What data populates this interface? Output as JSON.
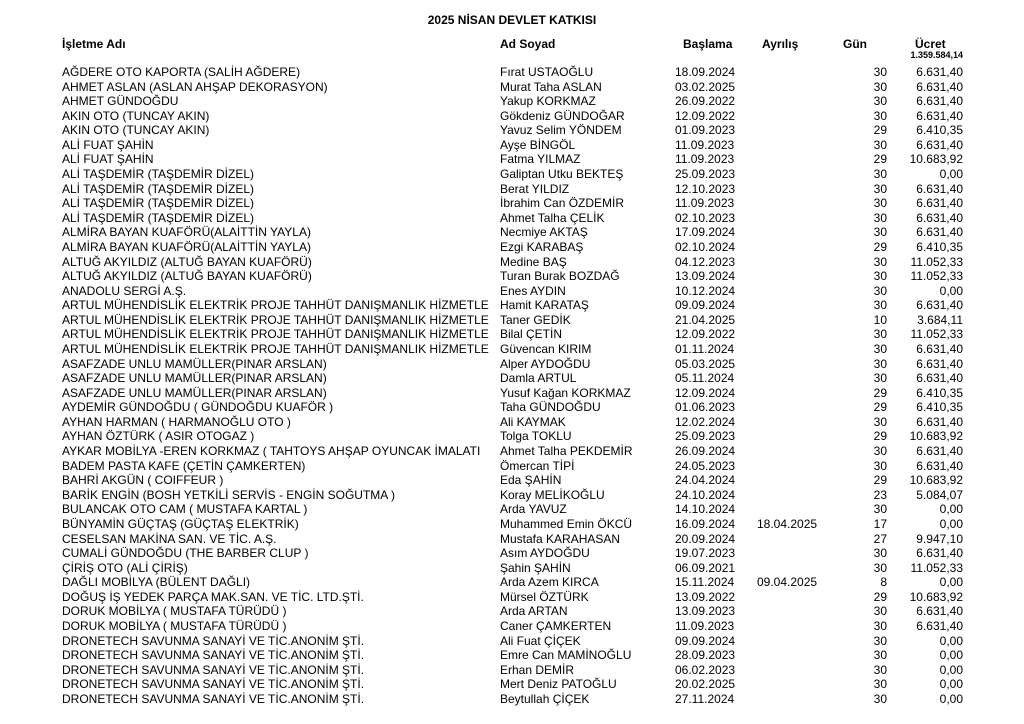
{
  "title": "2025 NİSAN DEVLET KATKISI",
  "headers": {
    "business": "İşletme Adı",
    "name": "Ad Soyad",
    "start": "Başlama",
    "end": "Ayrılış",
    "days": "Gün",
    "wage": "Ücret"
  },
  "total_wage": "1.359.584,14",
  "rows": [
    [
      "AĞDERE OTO KAPORTA (SALİH AĞDERE)",
      "Fırat USTAOĞLU",
      "18.09.2024",
      "",
      "30",
      "6.631,40"
    ],
    [
      "AHMET ASLAN (ASLAN AHŞAP DEKORASYON)",
      "Murat Taha ASLAN",
      "03.02.2025",
      "",
      "30",
      "6.631,40"
    ],
    [
      "AHMET GÜNDOĞDU",
      "Yakup KORKMAZ",
      "26.09.2022",
      "",
      "30",
      "6.631,40"
    ],
    [
      "AKIN OTO (TUNCAY AKIN)",
      "Gökdeniz GÜNDOĞAR",
      "12.09.2022",
      "",
      "30",
      "6.631,40"
    ],
    [
      "AKIN OTO (TUNCAY AKIN)",
      "Yavuz Selim YÖNDEM",
      "01.09.2023",
      "",
      "29",
      "6.410,35"
    ],
    [
      "ALİ FUAT ŞAHİN",
      "Ayşe BİNGÖL",
      "11.09.2023",
      "",
      "30",
      "6.631,40"
    ],
    [
      "ALİ FUAT ŞAHİN",
      "Fatma YILMAZ",
      "11.09.2023",
      "",
      "29",
      "10.683,92"
    ],
    [
      "ALİ TAŞDEMİR (TAŞDEMİR DİZEL)",
      "Galiptan Utku BEKTEŞ",
      "25.09.2023",
      "",
      "30",
      "0,00"
    ],
    [
      "ALİ TAŞDEMİR (TAŞDEMİR DİZEL)",
      "Berat YILDIZ",
      "12.10.2023",
      "",
      "30",
      "6.631,40"
    ],
    [
      "ALİ TAŞDEMİR (TAŞDEMİR DİZEL)",
      "İbrahim Can ÖZDEMİR",
      "11.09.2023",
      "",
      "30",
      "6.631,40"
    ],
    [
      "ALİ TAŞDEMİR (TAŞDEMİR DİZEL)",
      "Ahmet Talha ÇELİK",
      "02.10.2023",
      "",
      "30",
      "6.631,40"
    ],
    [
      "ALMİRA BAYAN KUAFÖRÜ(ALAİTTİN YAYLA)",
      "Necmiye AKTAŞ",
      "17.09.2024",
      "",
      "30",
      "6.631,40"
    ],
    [
      "ALMİRA BAYAN KUAFÖRÜ(ALAİTTİN YAYLA)",
      "Ezgi KARABAŞ",
      "02.10.2024",
      "",
      "29",
      "6.410,35"
    ],
    [
      "ALTUĞ AKYILDIZ (ALTUĞ BAYAN KUAFÖRÜ)",
      "Medine BAŞ",
      "04.12.2023",
      "",
      "30",
      "11.052,33"
    ],
    [
      "ALTUĞ AKYILDIZ (ALTUĞ BAYAN KUAFÖRÜ)",
      "Turan Burak BOZDAĞ",
      "13.09.2024",
      "",
      "30",
      "11.052,33"
    ],
    [
      "ANADOLU SERGİ A.Ş.",
      "Enes AYDIN",
      "10.12.2024",
      "",
      "30",
      "0,00"
    ],
    [
      "ARTUL MÜHENDİSLİK  ELEKTRİK PROJE TAHHÜT DANIŞMANLIK HİZMETLE",
      "Hamit KARATAŞ",
      "09.09.2024",
      "",
      "30",
      "6.631,40"
    ],
    [
      "ARTUL MÜHENDİSLİK  ELEKTRİK PROJE TAHHÜT DANIŞMANLIK HİZMETLE",
      "Taner GEDİK",
      "21.04.2025",
      "",
      "10",
      "3.684,11"
    ],
    [
      "ARTUL MÜHENDİSLİK  ELEKTRİK PROJE TAHHÜT DANIŞMANLIK HİZMETLE",
      "Bilal ÇETİN",
      "12.09.2022",
      "",
      "30",
      "11.052,33"
    ],
    [
      "ARTUL MÜHENDİSLİK  ELEKTRİK PROJE TAHHÜT DANIŞMANLIK HİZMETLE",
      "Güvencan KIRIM",
      "01.11.2024",
      "",
      "30",
      "6.631,40"
    ],
    [
      "ASAFZADE UNLU MAMÜLLER(PINAR ARSLAN)",
      "Alper AYDOĞDU",
      "05.03.2025",
      "",
      "30",
      "6.631,40"
    ],
    [
      "ASAFZADE UNLU MAMÜLLER(PINAR ARSLAN)",
      "Damla ARTUL",
      "05.11.2024",
      "",
      "30",
      "6.631,40"
    ],
    [
      "ASAFZADE UNLU MAMÜLLER(PINAR ARSLAN)",
      "Yusuf Kağan KORKMAZ",
      "12.09.2024",
      "",
      "29",
      "6.410,35"
    ],
    [
      "AYDEMİR GÜNDOĞDU  ( GÜNDOĞDU KUAFÖR )",
      "Taha GÜNDOĞDU",
      "01.06.2023",
      "",
      "29",
      "6.410,35"
    ],
    [
      "AYHAN HARMAN ( HARMANOĞLU OTO )",
      "Ali KAYMAK",
      "12.02.2024",
      "",
      "30",
      "6.631,40"
    ],
    [
      "AYHAN ÖZTÜRK ( ASIR OTOGAZ )",
      "Tolga TOKLU",
      "25.09.2023",
      "",
      "29",
      "10.683,92"
    ],
    [
      "AYKAR MOBİLYA -EREN KORKMAZ   ( TAHTOYS AHŞAP OYUNCAK İMALATI",
      "Ahmet Talha PEKDEMİR",
      "26.09.2024",
      "",
      "30",
      "6.631,40"
    ],
    [
      "BADEM PASTA KAFE (ÇETİN ÇAMKERTEN)",
      "Ömercan TİPİ",
      "24.05.2023",
      "",
      "30",
      "6.631,40"
    ],
    [
      "BAHRİ AKGÜN ( COIFFEUR )",
      "Eda ŞAHİN",
      "24.04.2024",
      "",
      "29",
      "10.683,92"
    ],
    [
      "BARİK ENGİN   (BOSH YETKİLİ SERVİS   - ENGİN SOĞUTMA )",
      "Koray MELİKOĞLU",
      "24.10.2024",
      "",
      "23",
      "5.084,07"
    ],
    [
      "BULANCAK OTO CAM ( MUSTAFA KARTAL )",
      "Arda YAVUZ",
      "14.10.2024",
      "",
      "30",
      "0,00"
    ],
    [
      "BÜNYAMİN GÜÇTAŞ     (GÜÇTAŞ ELEKTRİK)",
      "Muhammed Emin ÖKCÜ",
      "16.09.2024",
      "18.04.2025",
      "17",
      "0,00"
    ],
    [
      "CESELSAN MAKİNA SAN. VE TİC. A.Ş.",
      "Mustafa KARAHASAN",
      "20.09.2024",
      "",
      "27",
      "9.947,10"
    ],
    [
      "CUMALİ GÜNDOĞDU (THE  BARBER  CLUP )",
      "Asım AYDOĞDU",
      "19.07.2023",
      "",
      "30",
      "6.631,40"
    ],
    [
      "ÇİRİŞ OTO (ALİ ÇİRİŞ)",
      "Şahin ŞAHİN",
      "06.09.2021",
      "",
      "30",
      "11.052,33"
    ],
    [
      "DAĞLI MOBİLYA (BÜLENT DAĞLI)",
      "Arda Azem KIRCA",
      "15.11.2024",
      "09.04.2025",
      "8",
      "0,00"
    ],
    [
      "DOĞUŞ İŞ YEDEK PARÇA MAK.SAN. VE TİC. LTD.ŞTİ.",
      "Mürsel ÖZTÜRK",
      "13.09.2022",
      "",
      "29",
      "10.683,92"
    ],
    [
      "DORUK MOBİLYA ( MUSTAFA TÜRÜDÜ )",
      "Arda ARTAN",
      "13.09.2023",
      "",
      "30",
      "6.631,40"
    ],
    [
      "DORUK MOBİLYA ( MUSTAFA TÜRÜDÜ )",
      "Caner ÇAMKERTEN",
      "11.09.2023",
      "",
      "30",
      "6.631,40"
    ],
    [
      "DRONETECH SAVUNMA SANAYİ VE TİC.ANONİM ŞTİ.",
      "Ali Fuat ÇİÇEK",
      "09.09.2024",
      "",
      "30",
      "0,00"
    ],
    [
      "DRONETECH SAVUNMA SANAYİ VE TİC.ANONİM ŞTİ.",
      "Emre Can MAMİNOĞLU",
      "28.09.2023",
      "",
      "30",
      "0,00"
    ],
    [
      "DRONETECH SAVUNMA SANAYİ VE TİC.ANONİM ŞTİ.",
      "Erhan DEMİR",
      "06.02.2023",
      "",
      "30",
      "0,00"
    ],
    [
      "DRONETECH SAVUNMA SANAYİ VE TİC.ANONİM ŞTİ.",
      "Mert Deniz PATOĞLU",
      "20.02.2025",
      "",
      "30",
      "0,00"
    ],
    [
      "DRONETECH SAVUNMA SANAYİ VE TİC.ANONİM ŞTİ.",
      "Beytullah ÇİÇEK",
      "27.11.2024",
      "",
      "30",
      "0,00"
    ]
  ]
}
